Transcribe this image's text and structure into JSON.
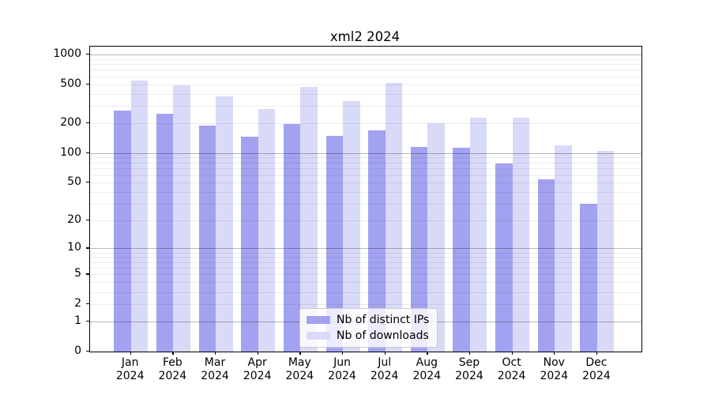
{
  "chart_data": {
    "type": "bar",
    "title": "xml2 2024",
    "categories": [
      "Jan",
      "Feb",
      "Mar",
      "Apr",
      "May",
      "Jun",
      "Jul",
      "Aug",
      "Sep",
      "Oct",
      "Nov",
      "Dec"
    ],
    "category_year": "2024",
    "series": [
      {
        "name": "Nb of distinct IPs",
        "color": "#a2a2f0",
        "values": [
          272,
          252,
          191,
          148,
          197,
          150,
          171,
          115,
          113,
          78,
          54,
          30
        ]
      },
      {
        "name": "Nb of downloads",
        "color": "#d9d9f8",
        "values": [
          546,
          490,
          376,
          278,
          472,
          338,
          519,
          202,
          228,
          228,
          121,
          105
        ]
      }
    ],
    "yscale": "log1p",
    "yticks": [
      0,
      1,
      2,
      5,
      10,
      20,
      50,
      100,
      200,
      500,
      1000
    ],
    "ylim": [
      0,
      1200
    ],
    "grid": true,
    "grid_minor_values": [
      2,
      3,
      4,
      5,
      6,
      7,
      8,
      9,
      20,
      30,
      40,
      50,
      60,
      70,
      80,
      90,
      200,
      300,
      400,
      500,
      600,
      700,
      800,
      900
    ],
    "grid_major_values": [
      1,
      10,
      100,
      1000
    ],
    "legend_position": "lower-center"
  },
  "colors": {
    "background": "#ffffff",
    "spine": "#000000",
    "bar_distinct_ips": "#a2a2f0",
    "bar_downloads": "#d9d9f8"
  }
}
